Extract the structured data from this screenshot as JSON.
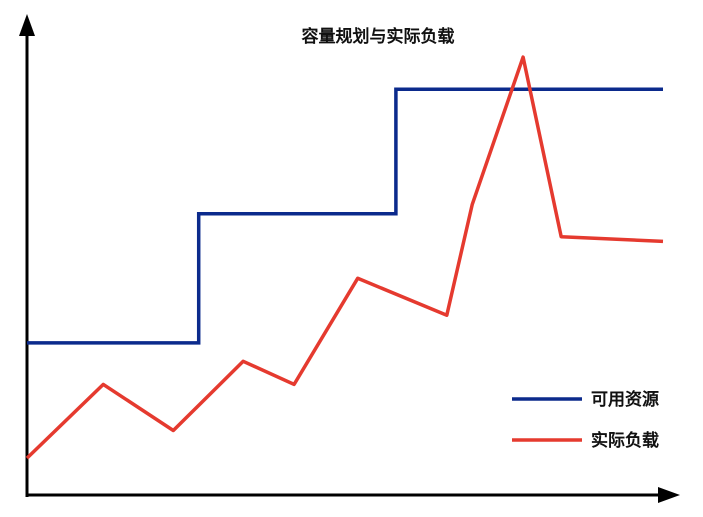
{
  "chart_data": {
    "type": "line",
    "title": "容量规划与实际负载",
    "xlabel": "",
    "ylabel": "",
    "xlim": [
      0,
      100
    ],
    "ylim": [
      0,
      100
    ],
    "grid": false,
    "legend_position": "bottom-right",
    "series": [
      {
        "name": "可用资源",
        "color": "#0b2a8c",
        "step": true,
        "x": [
          0,
          27,
          27,
          58,
          58,
          100
        ],
        "y": [
          33,
          33,
          61,
          61,
          88,
          88
        ]
      },
      {
        "name": "实际负载",
        "color": "#e53a2f",
        "step": false,
        "x": [
          0,
          12,
          23,
          34,
          42,
          52,
          66,
          70,
          78,
          84,
          100
        ],
        "y": [
          8,
          24,
          14,
          29,
          24,
          47,
          39,
          63,
          95,
          56,
          55
        ]
      }
    ],
    "axis_color": "#000000"
  }
}
